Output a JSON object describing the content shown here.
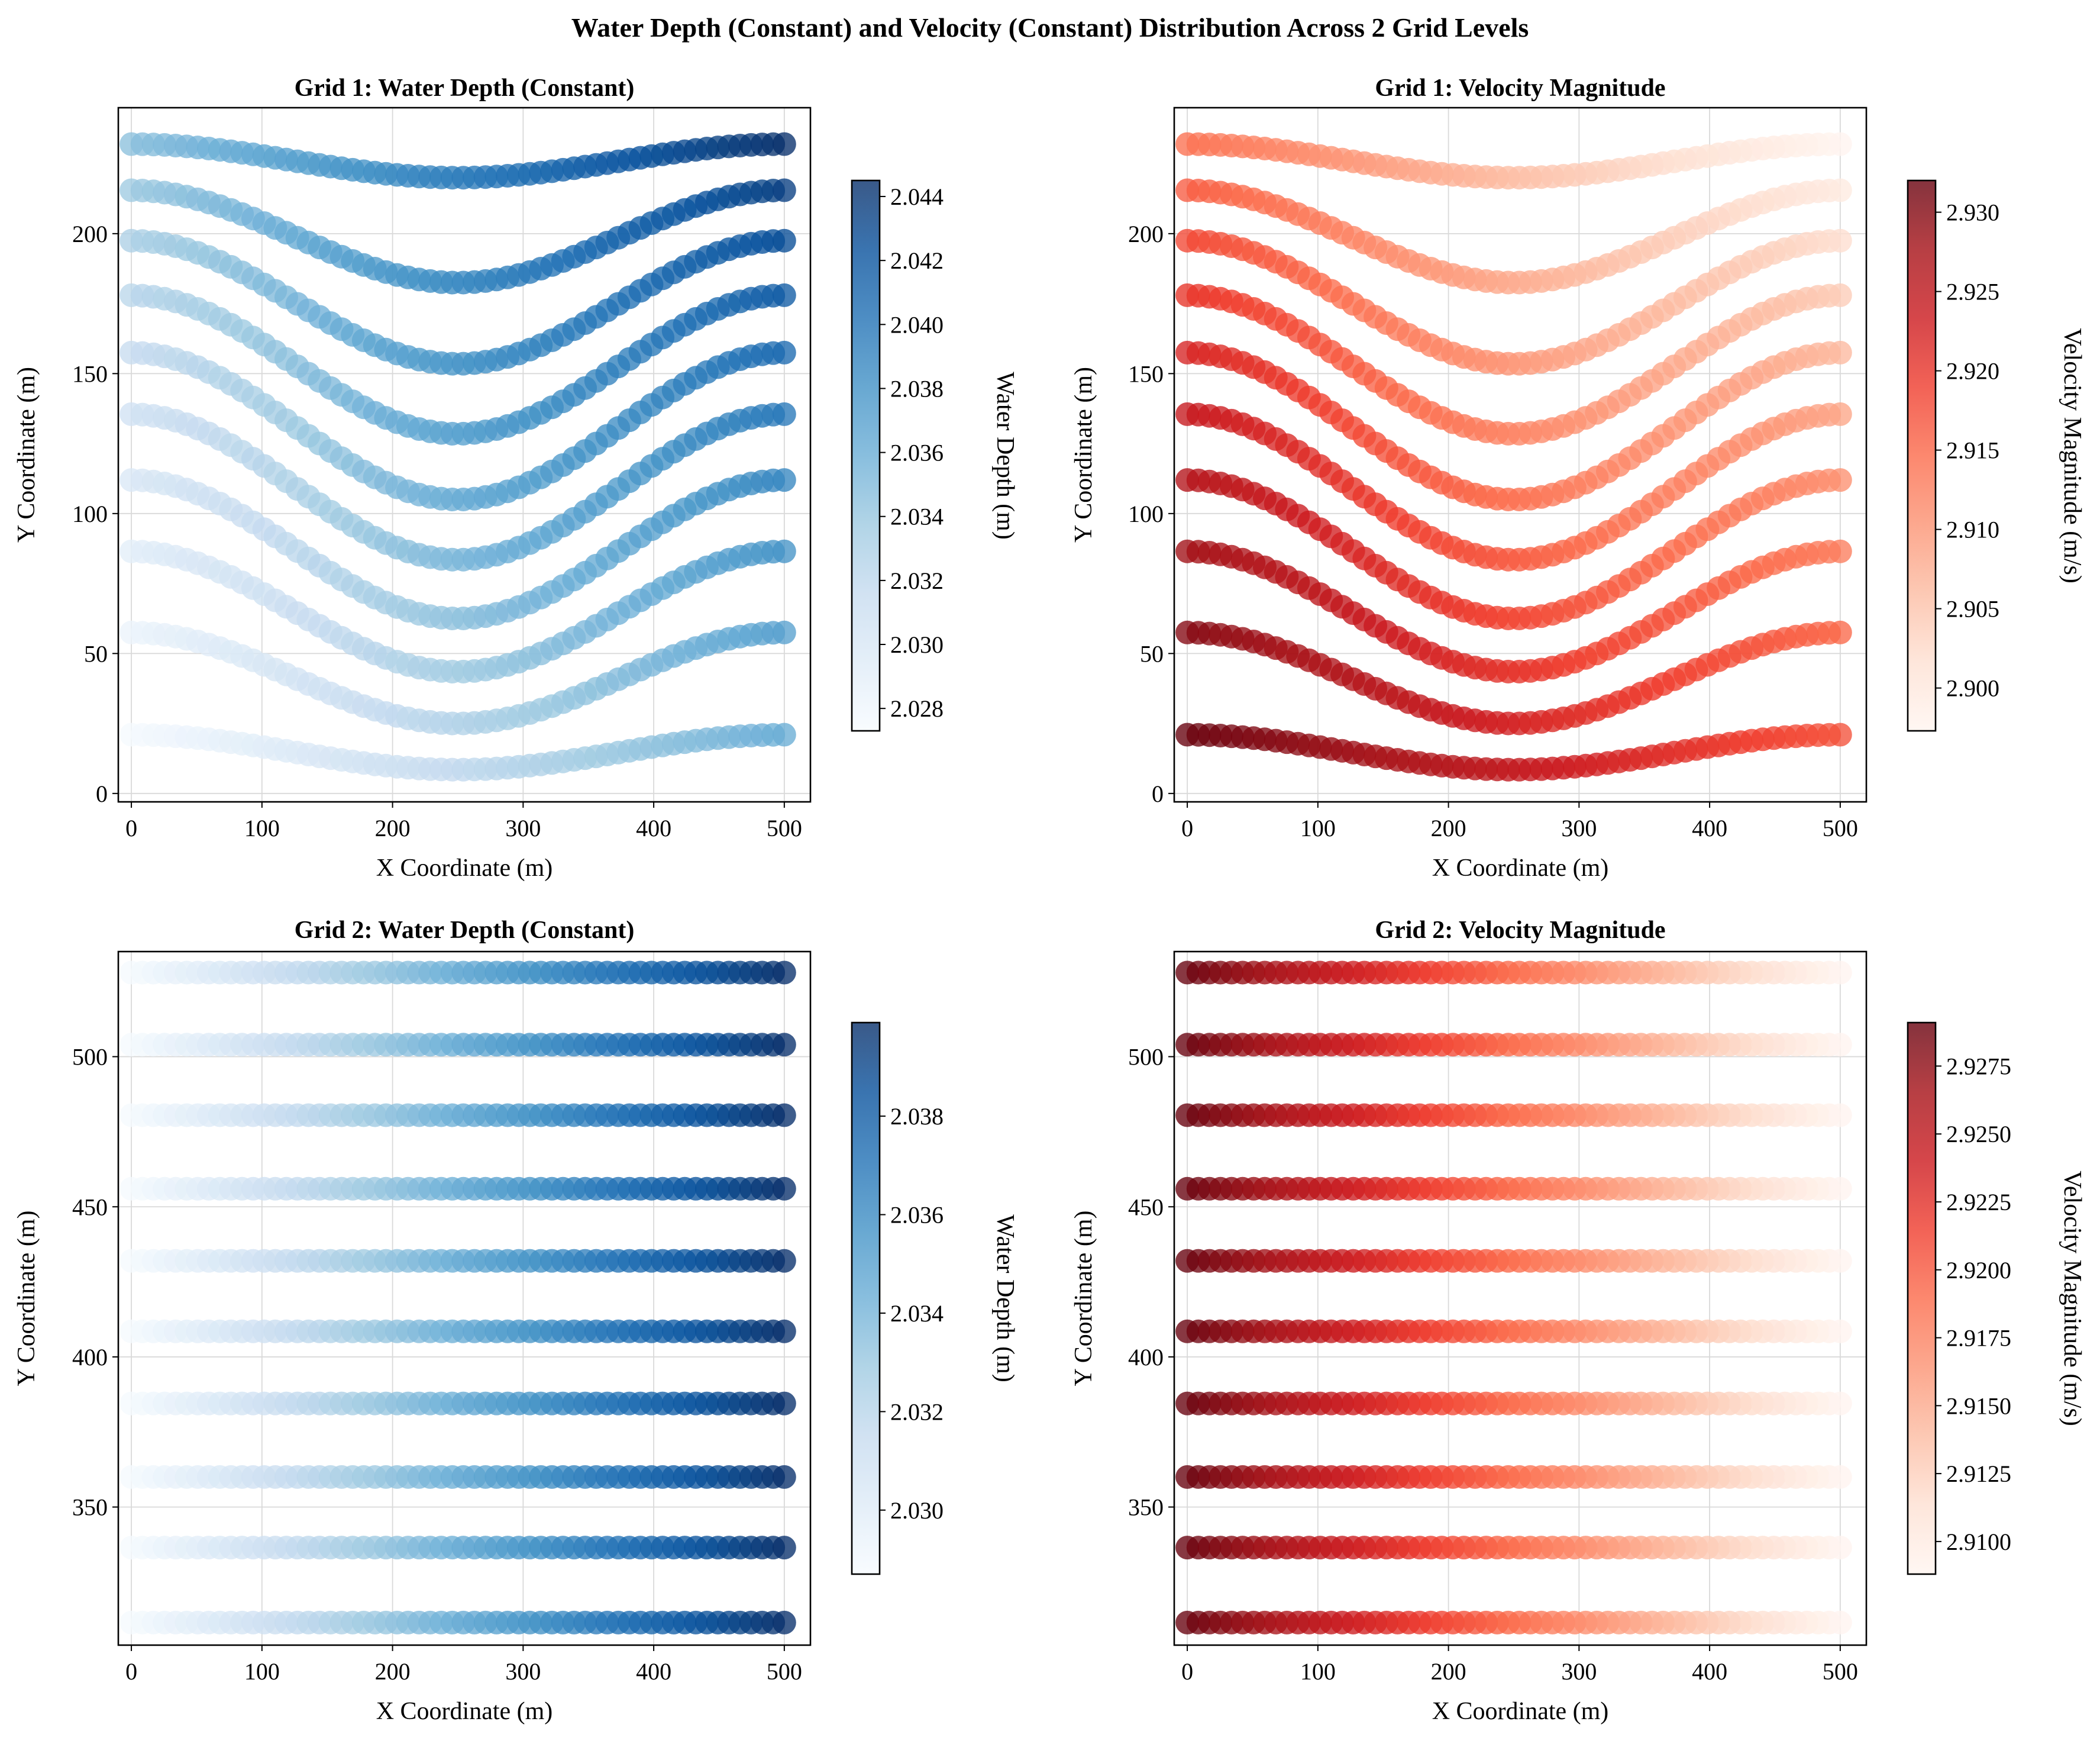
{
  "figure": {
    "title": "Water Depth (Constant) and Velocity (Constant) Distribution Across 2 Grid Levels"
  },
  "colormaps": {
    "Blues": [
      "#f7fbff",
      "#deebf7",
      "#c6dbef",
      "#9ecae1",
      "#6baed6",
      "#4292c6",
      "#2171b5",
      "#08519c",
      "#08306b"
    ],
    "Reds": [
      "#fff5f0",
      "#fee0d2",
      "#fcbba1",
      "#fc9272",
      "#fb6a4a",
      "#ef3b2c",
      "#cb181d",
      "#a50f15",
      "#67000d"
    ]
  },
  "chart_data": [
    {
      "panel": "grid1-depth",
      "type": "scatter",
      "title": "Grid 1: Water Depth (Constant)",
      "xlabel": "X Coordinate (m)",
      "ylabel": "Y Coordinate (m)",
      "xlim": [
        -10,
        520
      ],
      "ylim": [
        -3,
        245
      ],
      "xticks": [
        "0",
        "100",
        "200",
        "300",
        "400",
        "500"
      ],
      "yticks": [
        "0",
        "50",
        "100",
        "150",
        "200"
      ],
      "grid": true,
      "colormap": "Blues",
      "colorbar": {
        "label": "Water Depth (m)",
        "range": [
          2.0273,
          2.0445
        ],
        "ticks": [
          "2.028",
          "2.030",
          "2.032",
          "2.034",
          "2.036",
          "2.038",
          "2.040",
          "2.042",
          "2.044"
        ]
      },
      "pattern": "curved",
      "x_range": [
        0,
        500
      ],
      "line_endpoints_y": [
        21,
        57.5,
        86.5,
        112,
        135.5,
        157.5,
        178,
        197.5,
        215.5,
        232
      ],
      "line_center_y": [
        8.5,
        25,
        43.5,
        62.5,
        83.5,
        105,
        128.5,
        153.5,
        182.5,
        220
      ],
      "value_range_left": [
        2.0275,
        2.0345
      ],
      "value_range_right": [
        2.036,
        2.0445
      ]
    },
    {
      "panel": "grid1-velocity",
      "type": "scatter",
      "title": "Grid 1: Velocity Magnitude",
      "xlabel": "X Coordinate (m)",
      "ylabel": "Y Coordinate (m)",
      "xlim": [
        -10,
        520
      ],
      "ylim": [
        -3,
        245
      ],
      "xticks": [
        "0",
        "100",
        "200",
        "300",
        "400",
        "500"
      ],
      "yticks": [
        "0",
        "50",
        "100",
        "150",
        "200"
      ],
      "grid": true,
      "colormap": "Reds",
      "colorbar": {
        "label": "Velocity Magnitude (m/s)",
        "range": [
          2.8973,
          2.932
        ],
        "ticks": [
          "2.900",
          "2.905",
          "2.910",
          "2.915",
          "2.920",
          "2.925",
          "2.930"
        ]
      },
      "pattern": "curved",
      "x_range": [
        0,
        500
      ],
      "line_endpoints_y": [
        21,
        57.5,
        86.5,
        112,
        135.5,
        157.5,
        178,
        197.5,
        215.5,
        232
      ],
      "line_center_y": [
        8.5,
        25,
        43.5,
        62.5,
        83.5,
        105,
        128.5,
        153.5,
        182.5,
        220
      ],
      "value_range_bottom": [
        2.932,
        2.917
      ],
      "value_range_top": [
        2.914,
        2.8975
      ]
    },
    {
      "panel": "grid2-depth",
      "type": "scatter",
      "title": "Grid 2: Water Depth (Constant)",
      "xlabel": "X Coordinate (m)",
      "ylabel": "Y Coordinate (m)",
      "xlim": [
        -10,
        520
      ],
      "ylim": [
        304,
        535
      ],
      "xticks": [
        "0",
        "100",
        "200",
        "300",
        "400",
        "500"
      ],
      "yticks": [
        "350",
        "400",
        "450",
        "500"
      ],
      "grid": true,
      "colormap": "Blues",
      "colorbar": {
        "label": "Water Depth (m)",
        "range": [
          2.0287,
          2.0399
        ],
        "ticks": [
          "2.030",
          "2.032",
          "2.034",
          "2.036",
          "2.038"
        ]
      },
      "pattern": "straight",
      "x_range": [
        0,
        500
      ],
      "line_y": [
        311.5,
        336.5,
        360,
        384.5,
        408.5,
        432,
        456,
        480.5,
        504,
        528
      ],
      "value_range_along_x": [
        2.0288,
        2.0399
      ]
    },
    {
      "panel": "grid2-velocity",
      "type": "scatter",
      "title": "Grid 2: Velocity Magnitude",
      "xlabel": "X Coordinate (m)",
      "ylabel": "Y Coordinate (m)",
      "xlim": [
        -10,
        520
      ],
      "ylim": [
        304,
        535
      ],
      "xticks": [
        "0",
        "100",
        "200",
        "300",
        "400",
        "500"
      ],
      "yticks": [
        "350",
        "400",
        "450",
        "500"
      ],
      "grid": true,
      "colormap": "Reds",
      "colorbar": {
        "label": "Velocity Magnitude (m/s)",
        "range": [
          2.9088,
          2.9291
        ],
        "ticks": [
          "2.9100",
          "2.9125",
          "2.9150",
          "2.9175",
          "2.9200",
          "2.9225",
          "2.9250",
          "2.9275"
        ]
      },
      "pattern": "straight",
      "x_range": [
        0,
        500
      ],
      "line_y": [
        311.5,
        336.5,
        360,
        384.5,
        408.5,
        432,
        456,
        480.5,
        504,
        528
      ],
      "value_range_along_x": [
        2.9291,
        2.9089
      ]
    }
  ]
}
